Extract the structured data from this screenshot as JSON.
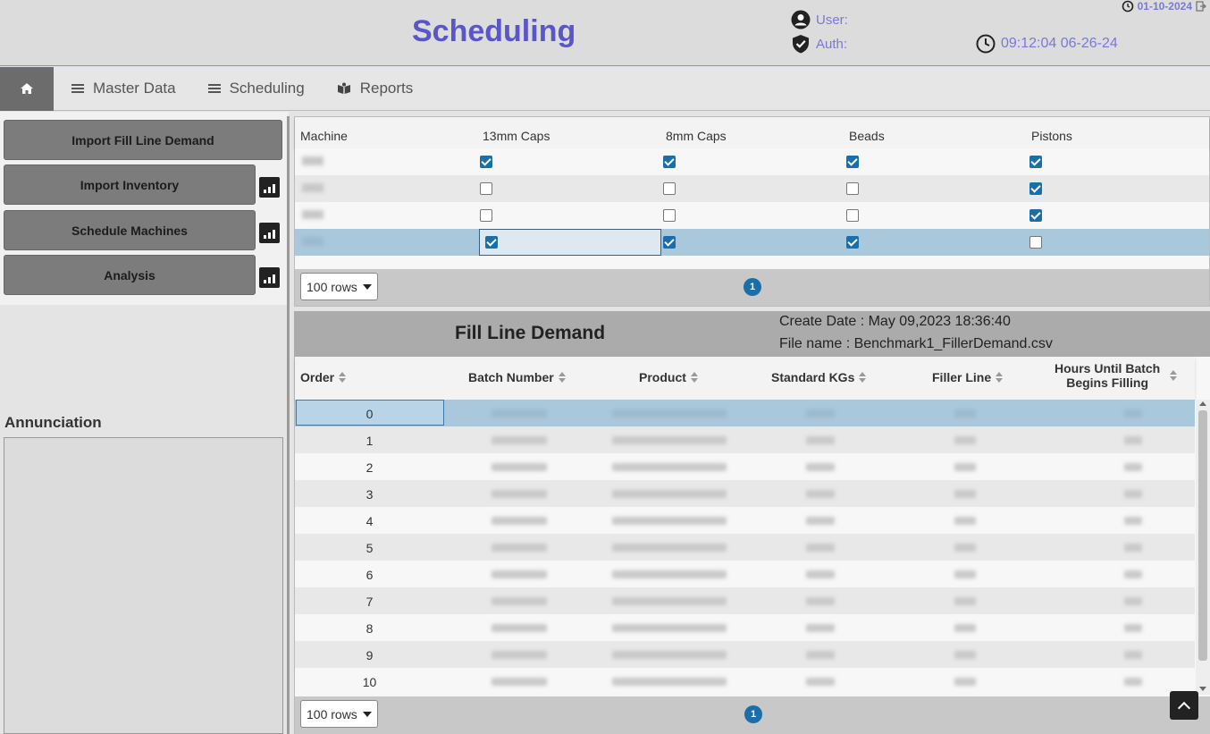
{
  "header": {
    "title": "Scheduling",
    "user_label": "User:",
    "auth_label": "Auth:",
    "clock_time": "09:12:04 06-26-24",
    "version_date": "01-10-2024",
    "accent_color": "#5a55c9"
  },
  "nav": {
    "home_icon": "home-icon",
    "items": [
      {
        "label": "Master Data",
        "icon": "menu-icon"
      },
      {
        "label": "Scheduling",
        "icon": "menu-icon"
      },
      {
        "label": "Reports",
        "icon": "book-icon"
      }
    ]
  },
  "sidebar": {
    "buttons": [
      {
        "label": "Import Fill Line Demand",
        "has_chart": false
      },
      {
        "label": "Import Inventory",
        "has_chart": true
      },
      {
        "label": "Schedule Machines",
        "has_chart": true
      },
      {
        "label": "Analysis",
        "has_chart": true
      }
    ],
    "annunciation_label": "Annunciation"
  },
  "machine_table": {
    "columns": [
      "Machine",
      "13mm Caps",
      "8mm Caps",
      "Beads",
      "Pistons"
    ],
    "rows": [
      {
        "checks": [
          true,
          true,
          true,
          true
        ]
      },
      {
        "checks": [
          false,
          false,
          false,
          true
        ]
      },
      {
        "checks": [
          false,
          false,
          false,
          true
        ]
      },
      {
        "checks": [
          true,
          true,
          true,
          false
        ],
        "selected": true
      }
    ],
    "rows_per_page": "100 rows",
    "page": "1"
  },
  "demand": {
    "title": "Fill Line Demand",
    "create_date": "Create Date : May 09,2023 18:36:40",
    "file_name": "File name : Benchmark1_FillerDemand.csv",
    "columns": {
      "order": "Order",
      "batch": "Batch Number",
      "product": "Product",
      "kgs": "Standard KGs",
      "filler": "Filler Line",
      "hours_line1": "Hours Until Batch",
      "hours_line2": "Begins Filling"
    },
    "orders": [
      "0",
      "1",
      "2",
      "3",
      "4",
      "5",
      "6",
      "7",
      "8",
      "9",
      "10"
    ],
    "rows_per_page": "100 rows",
    "page": "1"
  }
}
